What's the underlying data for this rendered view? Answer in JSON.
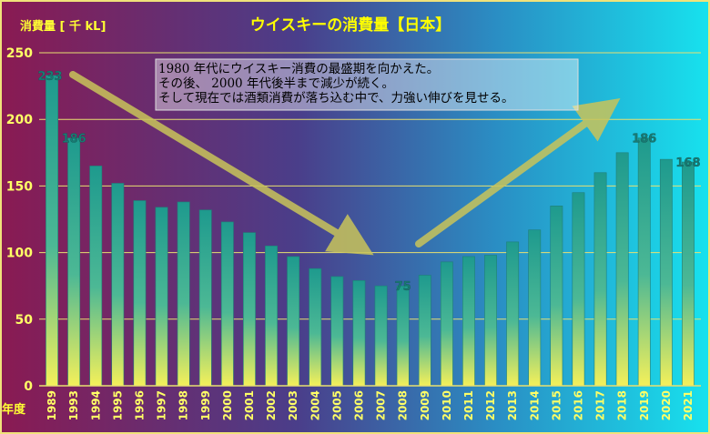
{
  "chart_data": {
    "type": "bar",
    "title": "ウイスキーの消費量【日本】",
    "ylabel": "消費量 [ 千 kL]",
    "xlabel": "年度",
    "ylim": [
      0,
      250
    ],
    "yticks": [
      0,
      50,
      100,
      150,
      200,
      250
    ],
    "grid": true,
    "categories": [
      "1989",
      "1993",
      "1994",
      "1995",
      "1996",
      "1997",
      "1998",
      "1999",
      "2000",
      "2001",
      "2002",
      "2003",
      "2004",
      "2005",
      "2006",
      "2007",
      "2008",
      "2009",
      "2010",
      "2011",
      "2012",
      "2013",
      "2014",
      "2015",
      "2016",
      "2017",
      "2018",
      "2019",
      "2020",
      "2021"
    ],
    "values": [
      233,
      186,
      165,
      152,
      139,
      134,
      138,
      132,
      123,
      115,
      105,
      97,
      88,
      82,
      79,
      75,
      75,
      83,
      93,
      97,
      98,
      108,
      117,
      135,
      145,
      160,
      175,
      186,
      170,
      168
    ],
    "data_labels": [
      {
        "category": "1989",
        "text": "233"
      },
      {
        "category": "1993",
        "text": "186"
      },
      {
        "category": "2008",
        "text": "75"
      },
      {
        "category": "2019",
        "text": "186"
      },
      {
        "category": "2021",
        "text": "168"
      }
    ],
    "annotation": [
      "1980 年代にウイスキー消費の最盛期を向かえた。",
      "その後、 2000 年代後半まで減少が続く。",
      "そして現在では酒類消費が落ち込む中で、力強い伸びを見せる。"
    ]
  },
  "colors": {
    "title": "#ffff00",
    "axis_label": "#ffff33",
    "tick_label": "#ffff66",
    "grid": "#e8e070",
    "data_label": "#1a7a73",
    "arrow": "#c9c45a",
    "bar_top": "#1e9a8e",
    "bar_bottom": "#f4f05a"
  }
}
